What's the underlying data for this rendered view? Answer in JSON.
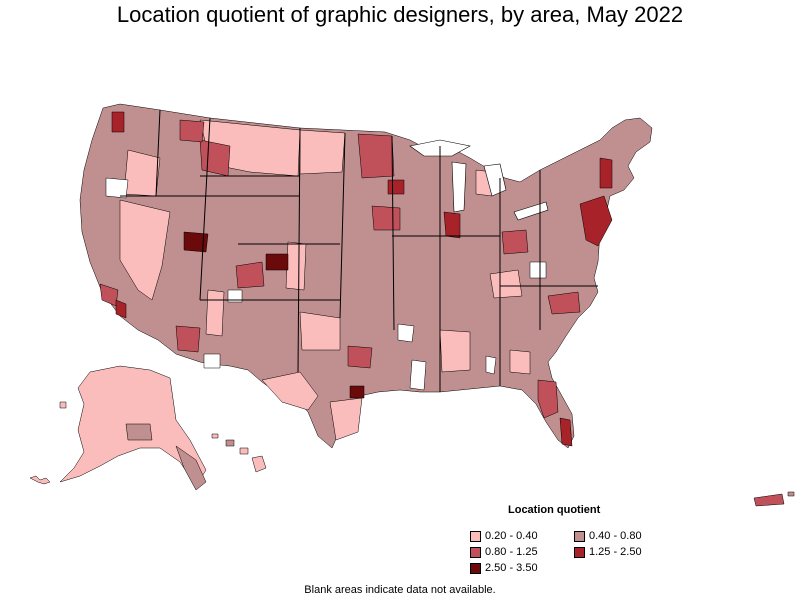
{
  "title": "Location quotient of graphic designers, by area, May 2022",
  "legend": {
    "title": "Location quotient",
    "items": [
      {
        "label": "0.20 - 0.40",
        "color": "#fbbcbc"
      },
      {
        "label": "0.40 - 0.80",
        "color": "#c08f8f"
      },
      {
        "label": "0.80 - 1.25",
        "color": "#c0505a"
      },
      {
        "label": "1.25 - 2.50",
        "color": "#a8222a"
      },
      {
        "label": "2.50 - 3.50",
        "color": "#6b0a0a"
      }
    ]
  },
  "footnote": "Blank areas indicate data not available.",
  "colors": {
    "no_data": "#ffffff",
    "border": "#000000"
  }
}
